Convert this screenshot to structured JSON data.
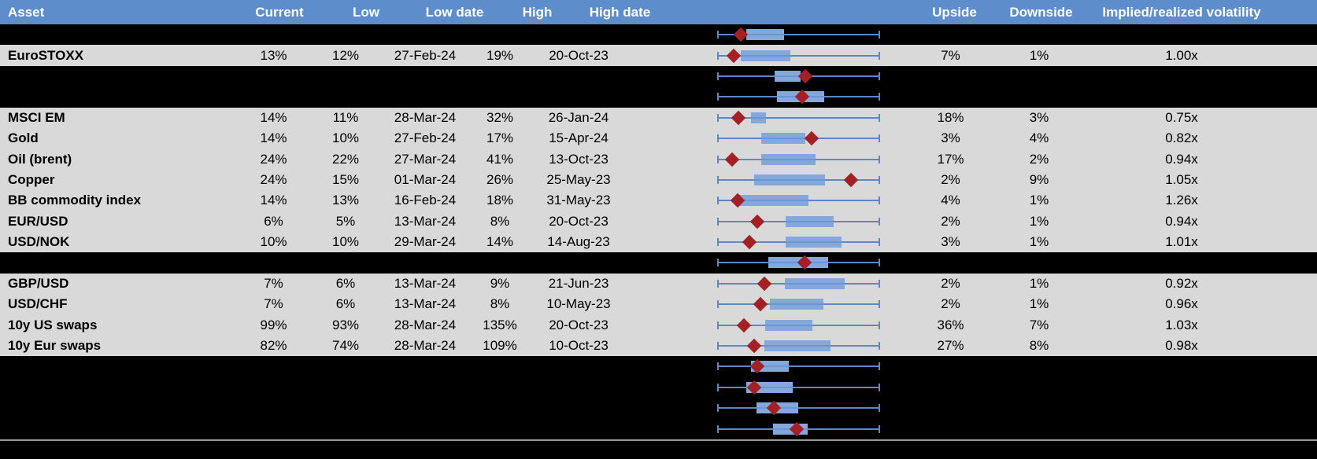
{
  "chart_data": {
    "type": "table",
    "columns": [
      {
        "id": "asset",
        "label": "Asset"
      },
      {
        "id": "current",
        "label": "Current"
      },
      {
        "id": "low",
        "label": "Low"
      },
      {
        "id": "low_date",
        "label": "Low date"
      },
      {
        "id": "high",
        "label": "High"
      },
      {
        "id": "high_date",
        "label": "High date"
      },
      {
        "id": "range_boxplot",
        "label": ""
      },
      {
        "id": "upside",
        "label": "Upside"
      },
      {
        "id": "downside",
        "label": "Downside"
      },
      {
        "id": "implied_realized_vol",
        "label": "Implied/realized volatility"
      }
    ],
    "boxplot_axis": {
      "whisker_span": [
        0,
        1
      ],
      "note": "box_left/box_right/current_marker are fractions of the whisker low-high span"
    },
    "rows": [
      {
        "hidden": true,
        "boxplot": {
          "box_left": 0.177,
          "box_right": 0.408,
          "current_marker": 0.14
        }
      },
      {
        "hidden": false,
        "asset": "EuroSTOXX",
        "current": "13%",
        "low": "12%",
        "low_date": "27-Feb-24",
        "high": "19%",
        "high_date": "20-Oct-23",
        "upside": "7%",
        "downside": "1%",
        "implied_realized_vol": "1.00x",
        "boxplot": {
          "box_left": 0.141,
          "box_right": 0.449,
          "current_marker": 0.099
        }
      },
      {
        "hidden": true,
        "boxplot": {
          "box_left": 0.353,
          "box_right": 0.511,
          "current_marker": 0.54
        }
      },
      {
        "hidden": true,
        "boxplot": {
          "box_left": 0.364,
          "box_right": 0.66,
          "current_marker": 0.52
        }
      },
      {
        "hidden": false,
        "asset": "MSCI EM",
        "current": "14%",
        "low": "11%",
        "low_date": "28-Mar-24",
        "high": "32%",
        "high_date": "26-Jan-24",
        "upside": "18%",
        "downside": "3%",
        "implied_realized_vol": "0.75x",
        "boxplot": {
          "box_left": 0.205,
          "box_right": 0.298,
          "current_marker": 0.127
        }
      },
      {
        "hidden": false,
        "asset": "Gold",
        "current": "14%",
        "low": "10%",
        "low_date": "27-Feb-24",
        "high": "17%",
        "high_date": "15-Apr-24",
        "upside": "3%",
        "downside": "4%",
        "implied_realized_vol": "0.82x",
        "boxplot": {
          "box_left": 0.268,
          "box_right": 0.541,
          "current_marker": 0.58
        }
      },
      {
        "hidden": false,
        "asset": "Oil (brent)",
        "current": "24%",
        "low": "22%",
        "low_date": "27-Mar-24",
        "high": "41%",
        "high_date": "13-Oct-23",
        "upside": "17%",
        "downside": "2%",
        "implied_realized_vol": "0.94x",
        "boxplot": {
          "box_left": 0.268,
          "box_right": 0.605,
          "current_marker": 0.088
        }
      },
      {
        "hidden": false,
        "asset": "Copper",
        "current": "24%",
        "low": "15%",
        "low_date": "01-Mar-24",
        "high": "26%",
        "high_date": "25-May-23",
        "upside": "2%",
        "downside": "9%",
        "implied_realized_vol": "1.05x",
        "boxplot": {
          "box_left": 0.224,
          "box_right": 0.663,
          "current_marker": 0.824
        }
      },
      {
        "hidden": false,
        "asset": "BB commodity index",
        "current": "14%",
        "low": "13%",
        "low_date": "16-Feb-24",
        "high": "18%",
        "high_date": "31-May-23",
        "upside": "4%",
        "downside": "1%",
        "implied_realized_vol": "1.26x",
        "boxplot": {
          "box_left": 0.117,
          "box_right": 0.561,
          "current_marker": 0.122
        }
      },
      {
        "hidden": false,
        "asset": "EUR/USD",
        "current": "6%",
        "low": "5%",
        "low_date": "13-Mar-24",
        "high": "8%",
        "high_date": "20-Oct-23",
        "upside": "2%",
        "downside": "1%",
        "implied_realized_vol": "0.94x",
        "boxplot": {
          "box_left": 0.42,
          "box_right": 0.717,
          "current_marker": 0.244
        }
      },
      {
        "hidden": false,
        "asset": "USD/NOK",
        "current": "10%",
        "low": "10%",
        "low_date": "29-Mar-24",
        "high": "14%",
        "high_date": "14-Aug-23",
        "upside": "3%",
        "downside": "1%",
        "implied_realized_vol": "1.01x",
        "boxplot": {
          "box_left": 0.42,
          "box_right": 0.766,
          "current_marker": 0.195
        }
      },
      {
        "hidden": true,
        "boxplot": {
          "box_left": 0.312,
          "box_right": 0.682,
          "current_marker": 0.535
        }
      },
      {
        "hidden": false,
        "asset": "GBP/USD",
        "current": "7%",
        "low": "6%",
        "low_date": "13-Mar-24",
        "high": "9%",
        "high_date": "21-Jun-23",
        "upside": "2%",
        "downside": "1%",
        "implied_realized_vol": "0.92x",
        "boxplot": {
          "box_left": 0.413,
          "box_right": 0.787,
          "current_marker": 0.288
        }
      },
      {
        "hidden": false,
        "asset": "USD/CHF",
        "current": "7%",
        "low": "6%",
        "low_date": "13-Mar-24",
        "high": "8%",
        "high_date": "10-May-23",
        "upside": "2%",
        "downside": "1%",
        "implied_realized_vol": "0.96x",
        "boxplot": {
          "box_left": 0.32,
          "box_right": 0.652,
          "current_marker": 0.262
        }
      },
      {
        "hidden": false,
        "asset": "10y US swaps",
        "current": "99%",
        "low": "93%",
        "low_date": "28-Mar-24",
        "high": "135%",
        "high_date": "20-Oct-23",
        "upside": "36%",
        "downside": "7%",
        "implied_realized_vol": "1.03x",
        "boxplot": {
          "box_left": 0.291,
          "box_right": 0.584,
          "current_marker": 0.161
        }
      },
      {
        "hidden": false,
        "asset": "10y Eur swaps",
        "current": "82%",
        "low": "74%",
        "low_date": "28-Mar-24",
        "high": "109%",
        "high_date": "10-Oct-23",
        "upside": "27%",
        "downside": "8%",
        "implied_realized_vol": "0.98x",
        "boxplot": {
          "box_left": 0.288,
          "box_right": 0.698,
          "current_marker": 0.226
        }
      },
      {
        "hidden": true,
        "boxplot": {
          "box_left": 0.207,
          "box_right": 0.441,
          "current_marker": 0.245
        }
      },
      {
        "hidden": true,
        "boxplot": {
          "box_left": 0.177,
          "box_right": 0.465,
          "current_marker": 0.226
        }
      },
      {
        "hidden": true,
        "boxplot": {
          "box_left": 0.237,
          "box_right": 0.498,
          "current_marker": 0.345
        }
      },
      {
        "hidden": true,
        "boxplot": {
          "box_left": 0.343,
          "box_right": 0.555,
          "current_marker": 0.489
        }
      }
    ]
  },
  "colors": {
    "header_bg": "#5d8dcb",
    "header_text": "#ffffff",
    "row_bg": "#d9d9d9",
    "page_bg": "#000000",
    "whisker": "#5c88c7",
    "box_fill": "#84a8db",
    "box_median": "#6c96ce",
    "marker": "#a32125",
    "separator": "#999999",
    "cell_text": "#000000"
  }
}
